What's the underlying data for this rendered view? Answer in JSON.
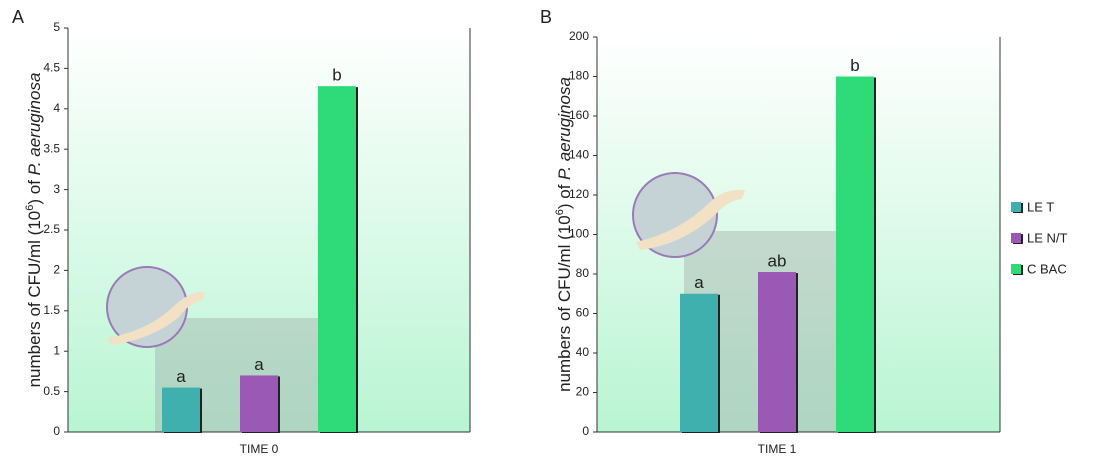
{
  "chart_data": [
    {
      "type": "bar",
      "panel": "A",
      "ylabel": {
        "prefix": "numbers of CFU/ml (10",
        "sup": "6",
        "suffix": ") of ",
        "italic": "P. aeruginosa"
      },
      "categories": [
        "TIME 0"
      ],
      "series": [
        {
          "name": "LE T",
          "color": "#3fb0ae",
          "values": [
            0.55
          ]
        },
        {
          "name": "LE N/T",
          "color": "#9b59b6",
          "values": [
            0.7
          ]
        },
        {
          "name": "C BAC",
          "color": "#2edb78",
          "values": [
            4.28
          ]
        }
      ],
      "annotations": [
        "a",
        "a",
        "b"
      ],
      "ylim": [
        0,
        5
      ],
      "yticks": [
        0,
        0.5,
        1,
        1.5,
        2,
        2.5,
        3,
        3.5,
        4,
        4.5,
        5
      ]
    },
    {
      "type": "bar",
      "panel": "B",
      "ylabel": {
        "prefix": "numbers of CFU/ml (10",
        "sup": "6",
        "suffix": ") of ",
        "italic": "P. aeruginosa"
      },
      "categories": [
        "TIME 1"
      ],
      "series": [
        {
          "color": "#3fb0ae",
          "values": [
            70
          ]
        },
        {
          "color": "#9b59b6",
          "values": [
            81
          ]
        },
        {
          "color": "#2edb78",
          "values": [
            180
          ]
        }
      ],
      "annotations": [
        "a",
        "ab",
        "b"
      ],
      "ylim": [
        0,
        200
      ],
      "yticks": [
        0,
        20,
        40,
        60,
        80,
        100,
        120,
        140,
        160,
        180,
        200
      ]
    }
  ]
}
